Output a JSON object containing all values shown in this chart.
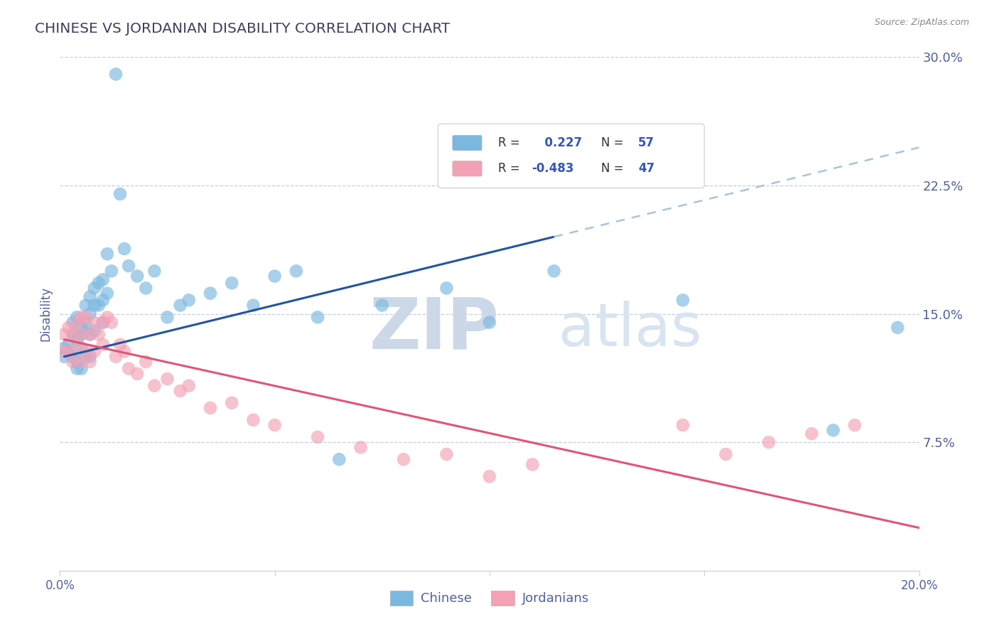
{
  "title": "CHINESE VS JORDANIAN DISABILITY CORRELATION CHART",
  "source_text": "Source: ZipAtlas.com",
  "ylabel": "Disability",
  "xlim": [
    0.0,
    0.2
  ],
  "ylim": [
    0.0,
    0.3
  ],
  "xticks": [
    0.0,
    0.05,
    0.1,
    0.15,
    0.2
  ],
  "xticklabels": [
    "0.0%",
    "",
    "",
    "",
    "20.0%"
  ],
  "yticks": [
    0.075,
    0.15,
    0.225,
    0.3
  ],
  "yticklabels": [
    "7.5%",
    "15.0%",
    "22.5%",
    "30.0%"
  ],
  "chinese_R": 0.227,
  "chinese_N": 57,
  "jordanian_R": -0.483,
  "jordanian_N": 47,
  "chinese_color": "#7ab8e0",
  "jordanian_color": "#f4a0b5",
  "chinese_line_color": "#2255a0",
  "jordanian_line_color": "#e05575",
  "trend_extension_color": "#a8c4dc",
  "background_color": "#ffffff",
  "grid_color": "#c5cfe0",
  "title_color": "#404060",
  "tick_color": "#5060a0",
  "watermark_zip_color": "#ccd8e8",
  "watermark_atlas_color": "#d8e4f0",
  "legend_R_color": "#3355bb",
  "legend_N_color": "#3355bb",
  "chinese_line_start_x": 0.001,
  "chinese_line_end_x": 0.115,
  "chinese_line_ext_end_x": 0.2,
  "chinese_line_start_y": 0.125,
  "chinese_line_end_y": 0.195,
  "jordanian_line_start_x": 0.001,
  "jordanian_line_end_x": 0.2,
  "jordanian_line_start_y": 0.135,
  "jordanian_line_end_y": 0.025,
  "chinese_points_x": [
    0.001,
    0.001,
    0.002,
    0.002,
    0.003,
    0.003,
    0.003,
    0.004,
    0.004,
    0.004,
    0.004,
    0.005,
    0.005,
    0.005,
    0.005,
    0.006,
    0.006,
    0.006,
    0.007,
    0.007,
    0.007,
    0.007,
    0.008,
    0.008,
    0.008,
    0.009,
    0.009,
    0.01,
    0.01,
    0.01,
    0.011,
    0.011,
    0.012,
    0.013,
    0.014,
    0.015,
    0.016,
    0.018,
    0.02,
    0.022,
    0.025,
    0.028,
    0.03,
    0.035,
    0.04,
    0.045,
    0.05,
    0.055,
    0.06,
    0.065,
    0.075,
    0.09,
    0.1,
    0.115,
    0.145,
    0.18,
    0.195
  ],
  "chinese_points_y": [
    0.13,
    0.125,
    0.132,
    0.128,
    0.145,
    0.138,
    0.125,
    0.148,
    0.135,
    0.122,
    0.118,
    0.142,
    0.138,
    0.13,
    0.118,
    0.155,
    0.145,
    0.125,
    0.16,
    0.15,
    0.138,
    0.125,
    0.165,
    0.155,
    0.14,
    0.168,
    0.155,
    0.17,
    0.158,
    0.145,
    0.185,
    0.162,
    0.175,
    0.29,
    0.22,
    0.188,
    0.178,
    0.172,
    0.165,
    0.175,
    0.148,
    0.155,
    0.158,
    0.162,
    0.168,
    0.155,
    0.172,
    0.175,
    0.148,
    0.065,
    0.155,
    0.165,
    0.145,
    0.175,
    0.158,
    0.082,
    0.142
  ],
  "jordanian_points_x": [
    0.001,
    0.001,
    0.002,
    0.002,
    0.003,
    0.003,
    0.004,
    0.004,
    0.005,
    0.005,
    0.005,
    0.006,
    0.006,
    0.007,
    0.007,
    0.008,
    0.008,
    0.009,
    0.01,
    0.01,
    0.011,
    0.012,
    0.013,
    0.014,
    0.015,
    0.016,
    0.018,
    0.02,
    0.022,
    0.025,
    0.028,
    0.03,
    0.035,
    0.04,
    0.045,
    0.05,
    0.06,
    0.07,
    0.08,
    0.09,
    0.1,
    0.11,
    0.145,
    0.155,
    0.165,
    0.175,
    0.185
  ],
  "jordanian_points_y": [
    0.138,
    0.128,
    0.142,
    0.128,
    0.138,
    0.122,
    0.145,
    0.132,
    0.148,
    0.138,
    0.122,
    0.148,
    0.128,
    0.138,
    0.122,
    0.145,
    0.128,
    0.138,
    0.145,
    0.132,
    0.148,
    0.145,
    0.125,
    0.132,
    0.128,
    0.118,
    0.115,
    0.122,
    0.108,
    0.112,
    0.105,
    0.108,
    0.095,
    0.098,
    0.088,
    0.085,
    0.078,
    0.072,
    0.065,
    0.068,
    0.055,
    0.062,
    0.085,
    0.068,
    0.075,
    0.08,
    0.085
  ]
}
